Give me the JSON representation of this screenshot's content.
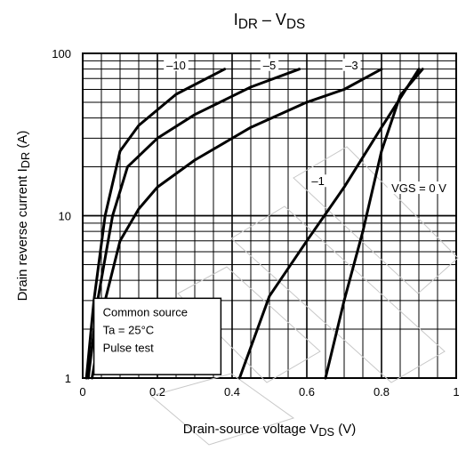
{
  "chart_data": {
    "type": "line",
    "title": {
      "main": "I",
      "sub": "DR",
      "rest": " – V",
      "sub2": "DS"
    },
    "xlabel": {
      "main": "Drain-source voltage   V",
      "sub": "DS",
      "rest": "   (V)"
    },
    "ylabel": {
      "main": "Drain reverse current   I",
      "sub": "DR",
      "rest": "   (A)"
    },
    "xscale": "linear",
    "yscale": "log",
    "xlim": [
      0,
      1
    ],
    "ylim": [
      1,
      100
    ],
    "grid": true,
    "x_ticks": [
      {
        "value": 0,
        "label": "0"
      },
      {
        "value": 0.2,
        "label": "0.2"
      },
      {
        "value": 0.4,
        "label": "0.4"
      },
      {
        "value": 0.6,
        "label": "0.6"
      },
      {
        "value": 0.8,
        "label": "0.8"
      },
      {
        "value": 1.0,
        "label": "1"
      }
    ],
    "y_ticks": [
      {
        "value": 1,
        "label": "1"
      },
      {
        "value": 10,
        "label": "10"
      },
      {
        "value": 100,
        "label": "100"
      }
    ],
    "annotation_box": [
      "Common source",
      "Ta = 25°C",
      "Pulse test"
    ],
    "series": [
      {
        "name": "–10",
        "label_at": [
          0.25,
          83
        ],
        "points": [
          [
            0.01,
            1
          ],
          [
            0.03,
            3
          ],
          [
            0.06,
            10
          ],
          [
            0.1,
            25
          ],
          [
            0.15,
            36
          ],
          [
            0.25,
            56
          ],
          [
            0.38,
            80
          ]
        ]
      },
      {
        "name": "–5",
        "label_at": [
          0.5,
          83
        ],
        "points": [
          [
            0.015,
            1
          ],
          [
            0.04,
            3
          ],
          [
            0.08,
            10
          ],
          [
            0.12,
            20
          ],
          [
            0.2,
            30
          ],
          [
            0.3,
            42
          ],
          [
            0.45,
            62
          ],
          [
            0.58,
            80
          ]
        ]
      },
      {
        "name": "–3",
        "label_at": [
          0.72,
          83
        ],
        "points": [
          [
            0.025,
            1
          ],
          [
            0.06,
            3
          ],
          [
            0.1,
            7
          ],
          [
            0.15,
            11
          ],
          [
            0.2,
            15
          ],
          [
            0.3,
            22
          ],
          [
            0.45,
            35
          ],
          [
            0.6,
            50
          ],
          [
            0.7,
            60
          ],
          [
            0.8,
            80
          ]
        ]
      },
      {
        "name": "–1",
        "label_at": [
          0.63,
          16
        ],
        "points": [
          [
            0.42,
            1
          ],
          [
            0.5,
            3.2
          ],
          [
            0.6,
            7
          ],
          [
            0.7,
            15
          ],
          [
            0.8,
            35
          ],
          [
            0.9,
            80
          ]
        ]
      },
      {
        "name": "VGS = 0 V",
        "label_at": [
          0.9,
          14.5
        ],
        "points": [
          [
            0.65,
            1
          ],
          [
            0.7,
            3
          ],
          [
            0.75,
            8
          ],
          [
            0.8,
            25
          ],
          [
            0.85,
            55
          ],
          [
            0.91,
            80
          ]
        ]
      }
    ],
    "watermark": "Datasheet"
  }
}
